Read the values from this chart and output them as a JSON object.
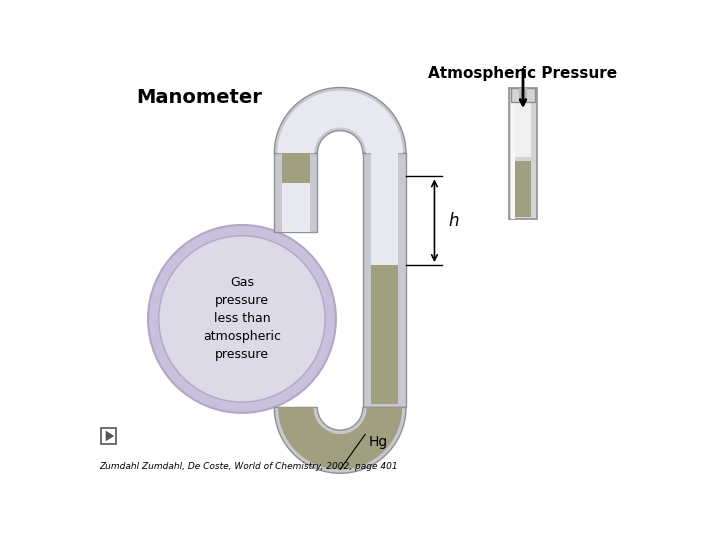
{
  "title": "Manometer",
  "atm_label": "Atmospheric Pressure",
  "gas_text": "Gas\npressure\nless than\natmospheric\npressure",
  "hg_label": "Hg",
  "h_label": "h",
  "citation": "Zumdahl Zumdahl, De Coste, World of Chemistry, 2002, page 401",
  "bg_color": "#ffffff",
  "tube_color": "#c8c8d0",
  "tube_edge": "#909090",
  "tube_highlight": "#e8e8f0",
  "mercury_color": "#a0a080",
  "bulb_fill": "#dddae8",
  "bulb_edge": "#b0a8c4",
  "bulb_outer_fill": "#c8c0dc",
  "rtube_outer": "#d4d4d4",
  "rtube_inner": "#f0f0f0",
  "rtube_edge": "#909090"
}
